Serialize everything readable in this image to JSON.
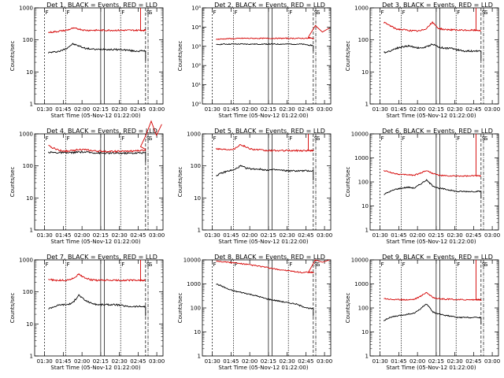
{
  "figure": {
    "ylabel": "Counts/sec",
    "xlabel": "Start Time (05-Nov-12 01:22:00)",
    "time_ticks": [
      "01:30",
      "01:45",
      "02:00",
      "02:15",
      "02:30",
      "02:45",
      "03:00"
    ],
    "marker_labels": [
      "F",
      "F",
      "F",
      "S",
      "S"
    ]
  },
  "chart_data": [
    {
      "type": "line",
      "title": "Det 1, BLACK = Events, RED = LLD",
      "yscale": "log",
      "ylim": [
        1,
        1000
      ],
      "yticks": [
        1,
        10,
        100,
        1000
      ],
      "ytick_labels": [
        "1",
        "10",
        "100",
        "1000"
      ],
      "series": [
        {
          "color": "#000000",
          "values": [
            40,
            42,
            45,
            55,
            75,
            65,
            55,
            52,
            50,
            52,
            50,
            50,
            50,
            48,
            45,
            45,
            45
          ]
        },
        {
          "color": "#d40000",
          "values": [
            170,
            180,
            190,
            200,
            230,
            220,
            200,
            200,
            200,
            200,
            200,
            200,
            200,
            200,
            200,
            200,
            200
          ]
        }
      ],
      "spike": {
        "start_time": "02:47",
        "to": 1000
      }
    },
    {
      "type": "line",
      "title": "Det 2, BLACK = Events, RED = LLD",
      "yscale": "log",
      "ylim": [
        1,
        100000
      ],
      "yticks": [
        1,
        10,
        100,
        1000,
        10000,
        100000
      ],
      "ytick_labels": [
        "10⁰",
        "10¹",
        "10²",
        "10³",
        "10⁴",
        "10⁵"
      ],
      "series": [
        {
          "color": "#000000",
          "values": [
            1200,
            1300,
            1300,
            1300,
            1300,
            1300,
            1300,
            1300,
            1300,
            1300,
            1300,
            1300,
            1300,
            1300,
            1300,
            1200,
            1100
          ]
        },
        {
          "color": "#d40000",
          "values": [
            2300,
            2400,
            2500,
            2500,
            2600,
            2600,
            2600,
            2600,
            2600,
            2600,
            2600,
            2600,
            2600,
            2600,
            2600,
            2600,
            2600
          ]
        }
      ],
      "bump": {
        "start_time": "02:47",
        "values": [
          3000,
          12000,
          5500,
          9000
        ]
      }
    },
    {
      "type": "line",
      "title": "Det 3, BLACK = Events, RED = LLD",
      "yscale": "log",
      "ylim": [
        1,
        1000
      ],
      "yticks": [
        1,
        10,
        100,
        1000
      ],
      "ytick_labels": [
        "1",
        "10",
        "100",
        "1000"
      ],
      "series": [
        {
          "color": "#000000",
          "values": [
            40,
            45,
            55,
            60,
            65,
            60,
            55,
            60,
            75,
            60,
            55,
            55,
            50,
            45,
            45,
            45,
            45
          ]
        },
        {
          "color": "#d40000",
          "values": [
            350,
            280,
            220,
            210,
            200,
            190,
            190,
            230,
            350,
            230,
            210,
            210,
            200,
            200,
            200,
            200,
            200
          ]
        }
      ],
      "spike": {
        "start_time": "02:47",
        "to": 1000
      }
    },
    {
      "type": "line",
      "title": "Det 4, BLACK = Events, RED = LLD",
      "yscale": "log",
      "ylim": [
        1,
        1000
      ],
      "yticks": [
        1,
        10,
        100,
        1000
      ],
      "ytick_labels": [
        "1",
        "10",
        "100",
        "1000"
      ],
      "series": [
        {
          "color": "#000000",
          "values": [
            270,
            260,
            260,
            255,
            260,
            270,
            270,
            260,
            255,
            250,
            250,
            250,
            250,
            250,
            250,
            255,
            260
          ]
        },
        {
          "color": "#d40000",
          "values": [
            420,
            350,
            300,
            290,
            300,
            330,
            320,
            300,
            290,
            285,
            285,
            285,
            285,
            285,
            290,
            300,
            310
          ]
        }
      ],
      "bump": {
        "start_time": "02:47",
        "values": [
          400,
          900,
          2500,
          900,
          2000
        ]
      }
    },
    {
      "type": "line",
      "title": "Det 5, BLACK = Events, RED = LLD",
      "yscale": "log",
      "ylim": [
        1,
        1000
      ],
      "yticks": [
        1,
        10,
        100,
        1000
      ],
      "ytick_labels": [
        "1",
        "10",
        "100",
        "1000"
      ],
      "series": [
        {
          "color": "#000000",
          "values": [
            50,
            60,
            70,
            75,
            100,
            85,
            80,
            80,
            75,
            75,
            75,
            72,
            70,
            70,
            70,
            70,
            70
          ]
        },
        {
          "color": "#d40000",
          "values": [
            350,
            330,
            330,
            340,
            470,
            380,
            330,
            320,
            300,
            300,
            300,
            300,
            300,
            300,
            300,
            300,
            300
          ]
        }
      ],
      "spike": {
        "start_time": "02:47",
        "to": 1000
      }
    },
    {
      "type": "line",
      "title": "Det 6, BLACK = Events, RED = LLD",
      "yscale": "log",
      "ylim": [
        1,
        10000
      ],
      "yticks": [
        1,
        10,
        100,
        1000,
        10000
      ],
      "ytick_labels": [
        "1",
        "10",
        "100",
        "1000",
        "10000"
      ],
      "series": [
        {
          "color": "#000000",
          "values": [
            30,
            40,
            50,
            55,
            60,
            55,
            80,
            120,
            70,
            55,
            50,
            45,
            40,
            40,
            40,
            40,
            40
          ]
        },
        {
          "color": "#d40000",
          "values": [
            300,
            250,
            220,
            200,
            200,
            190,
            230,
            300,
            230,
            190,
            180,
            175,
            175,
            175,
            175,
            180,
            180
          ]
        }
      ],
      "spike": {
        "start_time": "02:47",
        "to": 10000
      }
    },
    {
      "type": "line",
      "title": "Det 7, BLACK = Events, RED = LLD",
      "yscale": "log",
      "ylim": [
        1,
        1000
      ],
      "yticks": [
        1,
        10,
        100,
        1000
      ],
      "ytick_labels": [
        "1",
        "10",
        "100",
        "1000"
      ],
      "series": [
        {
          "color": "#000000",
          "values": [
            30,
            35,
            40,
            40,
            45,
            80,
            55,
            45,
            40,
            40,
            40,
            40,
            38,
            35,
            35,
            35,
            35
          ]
        },
        {
          "color": "#d40000",
          "values": [
            250,
            230,
            230,
            230,
            260,
            350,
            280,
            240,
            230,
            230,
            230,
            230,
            230,
            230,
            230,
            230,
            230
          ]
        }
      ],
      "spike": {
        "start_time": "02:47",
        "to": 1000
      }
    },
    {
      "type": "line",
      "title": "Det 8, BLACK = Events, RED = LLD",
      "yscale": "log",
      "ylim": [
        1,
        10000
      ],
      "yticks": [
        1,
        10,
        100,
        1000,
        10000
      ],
      "ytick_labels": [
        "1",
        "10",
        "100",
        "1000",
        "10000"
      ],
      "series": [
        {
          "color": "#000000",
          "values": [
            1000,
            800,
            600,
            500,
            450,
            400,
            350,
            300,
            250,
            220,
            200,
            180,
            160,
            150,
            120,
            100,
            90
          ]
        },
        {
          "color": "#d40000",
          "values": [
            9000,
            8500,
            8000,
            7500,
            7000,
            6500,
            6000,
            5500,
            5000,
            4500,
            4000,
            3800,
            3500,
            3200,
            3000,
            3000,
            3000
          ]
        }
      ],
      "bump": {
        "start_time": "02:47",
        "values": [
          3000,
          10000,
          8000,
          10000
        ]
      }
    },
    {
      "type": "line",
      "title": "Det 9, BLACK = Events, RED = LLD",
      "yscale": "log",
      "ylim": [
        1,
        10000
      ],
      "yticks": [
        1,
        10,
        100,
        1000,
        10000
      ],
      "ytick_labels": [
        "1",
        "10",
        "100",
        "1000",
        "10000"
      ],
      "series": [
        {
          "color": "#000000",
          "values": [
            30,
            40,
            45,
            50,
            55,
            60,
            90,
            150,
            70,
            55,
            50,
            45,
            40,
            40,
            40,
            40,
            40
          ]
        },
        {
          "color": "#d40000",
          "values": [
            250,
            230,
            220,
            220,
            220,
            230,
            300,
            450,
            280,
            240,
            230,
            230,
            220,
            220,
            220,
            220,
            220
          ]
        }
      ],
      "spike": {
        "start_time": "02:47",
        "to": 10000
      }
    }
  ]
}
